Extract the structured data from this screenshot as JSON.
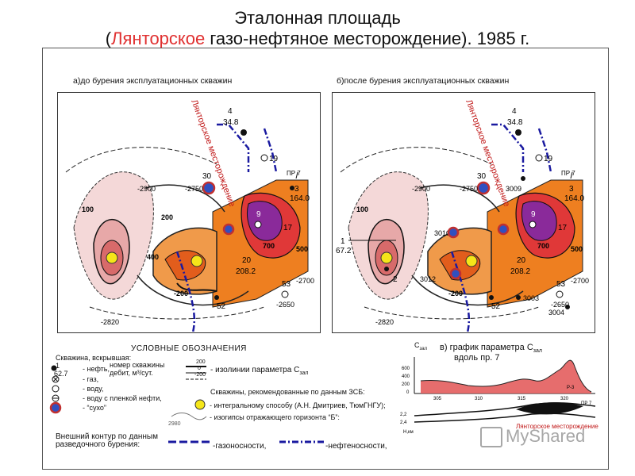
{
  "title": {
    "line1": "Эталонная площадь",
    "open_paren": "(",
    "field_name": "Лянторское",
    "line2_rest": " газо-нефтяное месторождение). 1985 г."
  },
  "maps": {
    "a_title": "а)до бурения эксплуатационных скважин",
    "b_title": "б)после бурения эксплуатационных скважин",
    "field_label": "Лянторское месторождение",
    "profile_label": "ПР 7",
    "wells_a": [
      {
        "num": "4",
        "debit": "34.8"
      },
      {
        "num": "19"
      },
      {
        "num": "30"
      },
      {
        "num": "3",
        "debit": "164.0"
      },
      {
        "num": "9"
      },
      {
        "num": "17"
      },
      {
        "num": "20",
        "debit": "208.2"
      },
      {
        "num": "53"
      },
      {
        "num": "52"
      }
    ],
    "wells_b_extra": [
      {
        "num": "1",
        "debit": "67.2"
      },
      {
        "num": "2"
      },
      {
        "num": "3009"
      },
      {
        "num": "3010"
      },
      {
        "num": "3012"
      },
      {
        "num": "3003"
      },
      {
        "num": "3004"
      }
    ],
    "contour_labels": [
      "-2900",
      "-2750",
      "-2700",
      "-2650",
      "-2820",
      "-2800",
      "100",
      "200",
      "400",
      "500",
      "700",
      "0",
      "-200"
    ]
  },
  "legend": {
    "title": "УСЛОВНЫЕ  ОБОЗНАЧЕНИЯ",
    "wells_header": "Скважина, вскрывшая:",
    "oil_num": "1",
    "oil_debit": "62.7",
    "oil": "- нефть,",
    "well_number_note": "номер скважины",
    "debit_note": "дебит, м³/сут.",
    "gas": "- газ,",
    "water": "- воду,",
    "water_film": "- воду с пленкой нефти,",
    "dry": "- “сухо”",
    "isolines": "- изолинии параметра С",
    "isolines_sub": "зал",
    "iso_200": "200",
    "iso_0": "0",
    "iso_m200": "-200",
    "recommended": "Скважины, рекомендованные по данным ЗСБ:",
    "integral": "- интегральному способу (А.Н. Дмитриев, ТюмГНГУ);",
    "isohypse": "- изогипсы отражающего горизонта “Б”:",
    "isohypse_value": "2980",
    "outer_contour": "Внешний контур по данным разведочного бурения:",
    "gas_bearing": "-газоносности,",
    "oil_bearing": "-нефтеносности,"
  },
  "graph": {
    "title": "в) график параметра С",
    "title_sub": "зал",
    "title_line2": "вдоль пр. 7",
    "y_axis_label": "С",
    "y_axis_sub": "зал",
    "y_ticks": [
      "600",
      "400",
      "200",
      "0"
    ],
    "x_ticks": [
      "305",
      "310",
      "315",
      "320"
    ],
    "profile": "ПР 7",
    "well_label": "Р-3",
    "depth_label": "Н,км",
    "depth_ticks": [
      "2,2",
      "2,4"
    ],
    "field_label": "Лянторское месторождение"
  },
  "watermark": "MyShared"
}
